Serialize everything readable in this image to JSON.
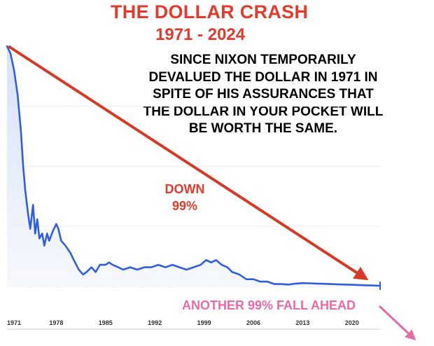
{
  "header": {
    "title": "THE DOLLAR CRASH",
    "subtitle": "1971 - 2024"
  },
  "annotation_lines": [
    "SINCE NIXON TEMPORARILY",
    "DEVALUED THE DOLLAR IN 1971 IN",
    "SPITE OF HIS ASSURANCES THAT",
    "THE DOLLAR IN YOUR POCKET WILL",
    "BE WORTH THE SAME."
  ],
  "callouts": {
    "down_line1": "DOWN",
    "down_line2": "99%",
    "ahead": "ANOTHER  99% FALL AHEAD"
  },
  "colors": {
    "series_line": "#2f5ee0",
    "series_fill": "#e6edfb",
    "red_arrow": "#d63a24",
    "pink_arrow": "#e76aa6",
    "title_red": "#e23a2b"
  },
  "chart_data": {
    "type": "line",
    "title": "THE DOLLAR CRASH",
    "subtitle": "1971 - 2024",
    "xlabel": "",
    "ylabel": "",
    "xlim": [
      1971,
      2024
    ],
    "ylim": [
      0,
      100
    ],
    "grid": true,
    "x_ticks": [
      "1971",
      "1978",
      "1985",
      "1992",
      "1999",
      "2006",
      "2013",
      "2020"
    ],
    "series": [
      {
        "values": [
          [
            1971.0,
            100
          ],
          [
            1971.5,
            97
          ],
          [
            1972.0,
            90
          ],
          [
            1972.5,
            80
          ],
          [
            1973.0,
            64
          ],
          [
            1973.3,
            50
          ],
          [
            1973.6,
            40
          ],
          [
            1974.0,
            30
          ],
          [
            1974.3,
            24
          ],
          [
            1974.7,
            34
          ],
          [
            1975.0,
            22
          ],
          [
            1975.3,
            28
          ],
          [
            1975.6,
            20
          ],
          [
            1976.0,
            22
          ],
          [
            1976.3,
            17
          ],
          [
            1976.7,
            22
          ],
          [
            1977.0,
            19
          ],
          [
            1977.5,
            23
          ],
          [
            1978.0,
            26
          ],
          [
            1978.3,
            24
          ],
          [
            1978.7,
            19
          ],
          [
            1979.3,
            17
          ],
          [
            1980.0,
            14
          ],
          [
            1980.5,
            11
          ],
          [
            1981.2,
            7
          ],
          [
            1981.8,
            5
          ],
          [
            1982.3,
            6
          ],
          [
            1983.0,
            8
          ],
          [
            1983.6,
            6
          ],
          [
            1984.2,
            9
          ],
          [
            1985.0,
            9
          ],
          [
            1985.5,
            10
          ],
          [
            1986.0,
            9
          ],
          [
            1986.8,
            8
          ],
          [
            1987.5,
            7
          ],
          [
            1988.5,
            8
          ],
          [
            1989.5,
            7
          ],
          [
            1990.5,
            8
          ],
          [
            1991.5,
            8
          ],
          [
            1992.5,
            9
          ],
          [
            1993.5,
            8
          ],
          [
            1994.5,
            9
          ],
          [
            1995.5,
            8
          ],
          [
            1996.5,
            7
          ],
          [
            1997.5,
            8
          ],
          [
            1998.5,
            9
          ],
          [
            1999.3,
            11
          ],
          [
            2000.0,
            10
          ],
          [
            2000.7,
            11
          ],
          [
            2001.5,
            9
          ],
          [
            2002.3,
            8
          ],
          [
            2003.0,
            6
          ],
          [
            2004.0,
            5
          ],
          [
            2005.0,
            3
          ],
          [
            2006.0,
            3
          ],
          [
            2007.0,
            2
          ],
          [
            2008.0,
            2
          ],
          [
            2009.0,
            1
          ],
          [
            2010.0,
            1
          ],
          [
            2011.0,
            0.8
          ],
          [
            2012.0,
            1.2
          ],
          [
            2013.0,
            1.4
          ],
          [
            2014.0,
            1.3
          ],
          [
            2015.0,
            1.2
          ],
          [
            2016.0,
            1.1
          ],
          [
            2017.0,
            1.0
          ],
          [
            2018.0,
            0.9
          ],
          [
            2019.0,
            0.8
          ],
          [
            2020.0,
            0.7
          ],
          [
            2021.0,
            0.6
          ],
          [
            2022.0,
            0.5
          ],
          [
            2023.0,
            0.4
          ],
          [
            2024.0,
            0.3
          ]
        ]
      }
    ],
    "annotations": [
      "DOWN 99%",
      "ANOTHER  99% FALL AHEAD"
    ]
  }
}
